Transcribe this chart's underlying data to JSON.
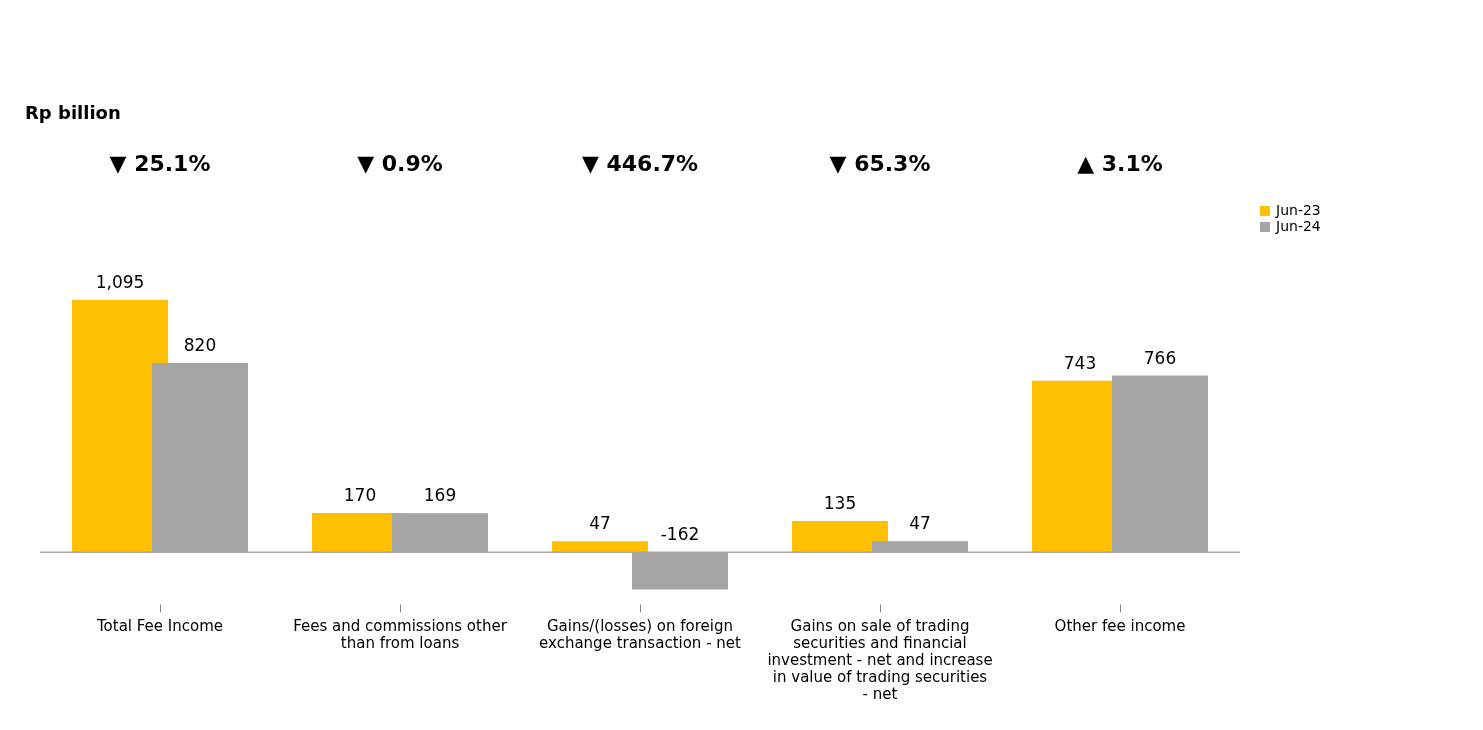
{
  "chart_data": {
    "type": "bar",
    "categories": [
      "Total Fee Income",
      "Fees and commissions other than from loans",
      "Gains/(losses) on foreign exchange transaction - net",
      "Gains on sale of trading securities and financial investment - net and increase in value of trading securities - net",
      "Other fee income"
    ],
    "series": [
      {
        "name": "Jun-23",
        "color": "#ffc000",
        "values": [
          1095,
          170,
          47,
          135,
          743
        ],
        "value_labels": [
          "1,095",
          "170",
          "47",
          "135",
          "743"
        ]
      },
      {
        "name": "Jun-24",
        "color": "#a5a5a5",
        "values": [
          820,
          169,
          -162,
          47,
          766
        ],
        "value_labels": [
          "820",
          "169",
          "-162",
          "47",
          "766"
        ]
      }
    ],
    "legend": "right",
    "grid": false,
    "annotations": [
      "Rp billion",
      "▼ 25.1%",
      "▼ 0.9%",
      "▼ 446.7%",
      "▼ 65.3%",
      "▲ 3.1%"
    ]
  }
}
